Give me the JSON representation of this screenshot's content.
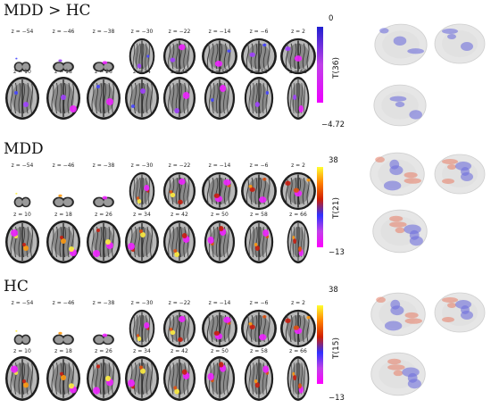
{
  "panels": [
    {
      "title": "MDD > HC",
      "contrast": "negative",
      "colorbar": {
        "max": "0",
        "min": "−4.72",
        "label": "T(36)",
        "colors": [
          "#1f1fd0",
          "#c040e8",
          "#ee00ff"
        ]
      },
      "row1_z": [
        "z = −54",
        "z = −46",
        "z = −38",
        "z = −30",
        "z = −22",
        "z = −14",
        "z = −6",
        "z = 2"
      ],
      "row2_z": [
        "z = 10",
        "z = 18",
        "z = 26",
        "z = 34",
        "z = 42",
        "z = 50",
        "z = 58",
        "z = 66"
      ]
    },
    {
      "title": "MDD",
      "contrast": "bidirectional",
      "colorbar": {
        "max": "38",
        "min": "−13",
        "label": "T(21)",
        "colors": [
          "#ffff30",
          "#ff8000",
          "#d02000",
          "#3030ff",
          "#c040e8",
          "#ff00ff"
        ]
      },
      "row1_z": [
        "z = −54",
        "z = −46",
        "z = −38",
        "z = −30",
        "z = −22",
        "z = −14",
        "z = −6",
        "z = 2"
      ],
      "row2_z": [
        "z = 10",
        "z = 18",
        "z = 26",
        "z = 34",
        "z = 42",
        "z = 50",
        "z = 58",
        "z = 66"
      ]
    },
    {
      "title": "HC",
      "contrast": "bidirectional",
      "colorbar": {
        "max": "38",
        "min": "−13",
        "label": "T(15)",
        "colors": [
          "#ffff30",
          "#ff8000",
          "#d02000",
          "#3030ff",
          "#c040e8",
          "#ff00ff"
        ]
      },
      "row1_z": [
        "z = −54",
        "z = −46",
        "z = −38",
        "z = −30",
        "z = −22",
        "z = −14",
        "z = −6",
        "z = 2"
      ],
      "row2_z": [
        "z = 10",
        "z = 18",
        "z = 26",
        "z = 34",
        "z = 42",
        "z = 50",
        "z = 58",
        "z = 66"
      ]
    }
  ]
}
